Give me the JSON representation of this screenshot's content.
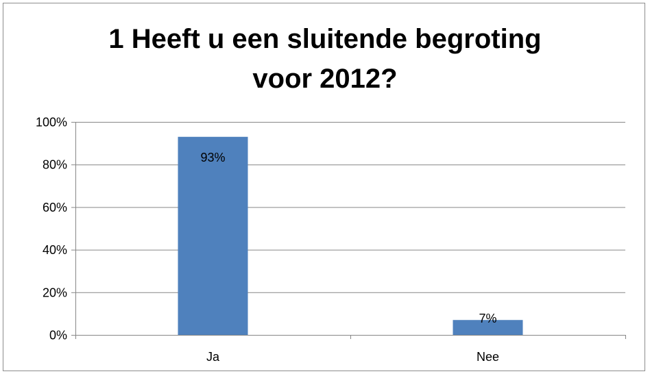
{
  "chart_data": {
    "type": "bar",
    "title_lines": [
      "1 Heeft u een sluitende begroting",
      "voor 2012?"
    ],
    "categories": [
      "Ja",
      "Nee"
    ],
    "values": [
      93,
      7
    ],
    "value_labels": [
      "93%",
      "7%"
    ],
    "ylim": [
      0,
      100
    ],
    "yticks": [
      0,
      20,
      40,
      60,
      80,
      100
    ],
    "ytick_labels": [
      "0%",
      "20%",
      "40%",
      "60%",
      "80%",
      "100%"
    ],
    "grid": true,
    "legend": "none",
    "bar_color": "#4f81bd",
    "grid_color": "#868686"
  }
}
